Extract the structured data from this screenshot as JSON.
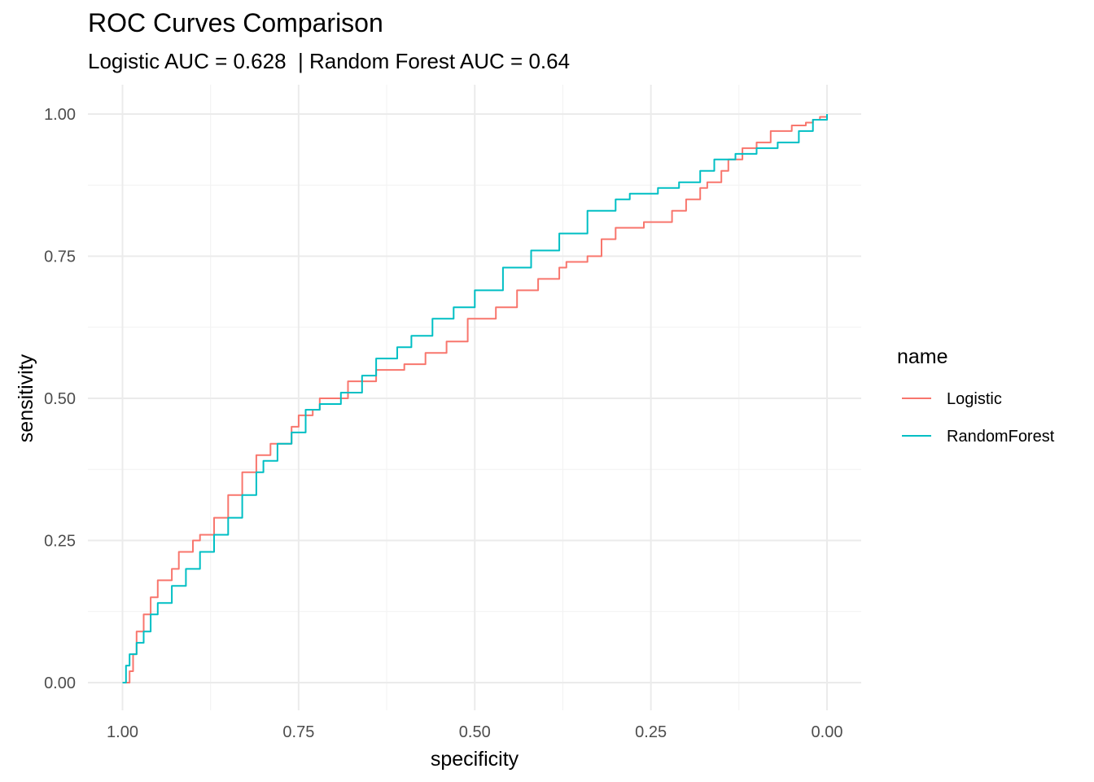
{
  "chart_data": {
    "type": "line",
    "title": "ROC Curves Comparison",
    "subtitle": "Logistic AUC = 0.628  | Random Forest AUC = 0.64",
    "xlabel": "specificity",
    "ylabel": "sensitivity",
    "xlim": [
      1.0,
      0.0
    ],
    "ylim": [
      0.0,
      1.0
    ],
    "x_reversed": true,
    "grid": true,
    "x_ticks": [
      "1.00",
      "0.75",
      "0.50",
      "0.25",
      "0.00"
    ],
    "y_ticks": [
      "0.00",
      "0.25",
      "0.50",
      "0.75",
      "1.00"
    ],
    "legend": {
      "title": "name",
      "placement": "right"
    },
    "series": [
      {
        "name": "Logistic",
        "color": "#F8766D",
        "x": [
          1.0,
          0.99,
          0.985,
          0.98,
          0.97,
          0.96,
          0.95,
          0.93,
          0.92,
          0.9,
          0.89,
          0.87,
          0.85,
          0.83,
          0.81,
          0.79,
          0.76,
          0.75,
          0.73,
          0.72,
          0.68,
          0.64,
          0.6,
          0.57,
          0.54,
          0.51,
          0.47,
          0.44,
          0.41,
          0.38,
          0.37,
          0.34,
          0.32,
          0.3,
          0.26,
          0.22,
          0.2,
          0.18,
          0.17,
          0.15,
          0.14,
          0.12,
          0.1,
          0.08,
          0.05,
          0.03,
          0.02,
          0.01,
          0.0
        ],
        "y": [
          0.0,
          0.02,
          0.05,
          0.09,
          0.12,
          0.15,
          0.18,
          0.2,
          0.23,
          0.25,
          0.26,
          0.29,
          0.33,
          0.37,
          0.4,
          0.42,
          0.45,
          0.47,
          0.48,
          0.5,
          0.53,
          0.55,
          0.56,
          0.58,
          0.6,
          0.64,
          0.66,
          0.69,
          0.71,
          0.73,
          0.74,
          0.75,
          0.78,
          0.8,
          0.81,
          0.83,
          0.85,
          0.87,
          0.88,
          0.9,
          0.92,
          0.94,
          0.95,
          0.97,
          0.98,
          0.985,
          0.99,
          0.995,
          1.0
        ]
      },
      {
        "name": "RandomForest",
        "color": "#00BFC4",
        "x": [
          1.0,
          0.995,
          0.99,
          0.98,
          0.97,
          0.96,
          0.95,
          0.93,
          0.91,
          0.89,
          0.87,
          0.85,
          0.83,
          0.81,
          0.8,
          0.78,
          0.76,
          0.74,
          0.72,
          0.69,
          0.66,
          0.64,
          0.61,
          0.59,
          0.56,
          0.53,
          0.5,
          0.46,
          0.42,
          0.38,
          0.34,
          0.3,
          0.28,
          0.24,
          0.21,
          0.18,
          0.16,
          0.13,
          0.1,
          0.07,
          0.04,
          0.02,
          0.0
        ],
        "y": [
          0.0,
          0.03,
          0.05,
          0.07,
          0.09,
          0.12,
          0.14,
          0.17,
          0.2,
          0.23,
          0.26,
          0.29,
          0.33,
          0.37,
          0.39,
          0.42,
          0.44,
          0.48,
          0.49,
          0.51,
          0.54,
          0.57,
          0.59,
          0.61,
          0.64,
          0.66,
          0.69,
          0.73,
          0.76,
          0.79,
          0.83,
          0.85,
          0.86,
          0.87,
          0.88,
          0.9,
          0.92,
          0.93,
          0.94,
          0.95,
          0.97,
          0.99,
          1.0
        ]
      }
    ]
  }
}
